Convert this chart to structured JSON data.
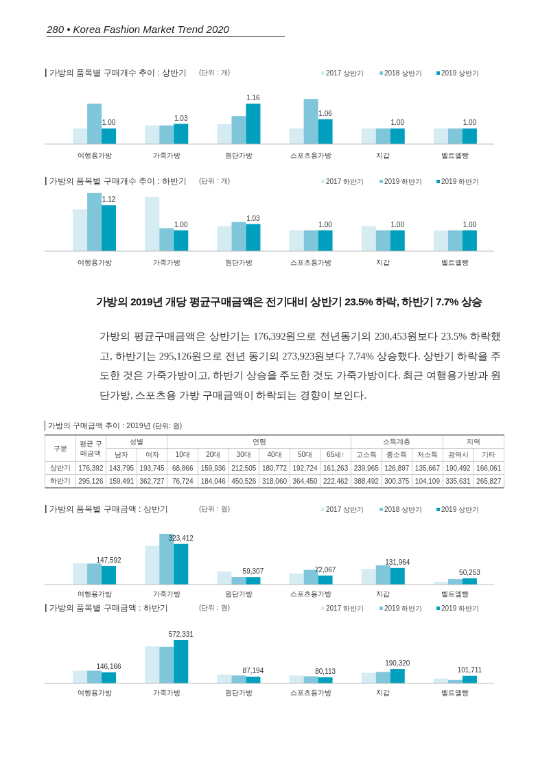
{
  "chart_data": [
    {
      "type": "other",
      "title": "280 • Korea Fashion Market Trend 2020"
    },
    {
      "type": "bar",
      "title": "가방의 품목별 구매개수 추이 : 상반기",
      "subtitle": "(단위 : 개)",
      "categories": [
        "여행용가방",
        "가죽가방",
        "원단가방",
        "스포츠용가방",
        "지갑",
        "벨트멜빵"
      ],
      "ylim": [
        0.9,
        1.2
      ],
      "tick_labels": "x",
      "legend": "top right",
      "series": [
        {
          "name": "2017 상반기",
          "color": "#d6ecf3",
          "values": [
            1.0,
            1.02,
            1.03,
            1.0,
            1.0,
            1.0
          ]
        },
        {
          "name": "2018 상반기",
          "color": "#7fc6da",
          "values": [
            1.16,
            1.02,
            1.08,
            1.19,
            1.0,
            1.0
          ]
        },
        {
          "name": "2019 상반기",
          "color": "#009fbd",
          "values": [
            1.0,
            1.03,
            1.16,
            1.06,
            1.0,
            1.0
          ],
          "value_labels": [
            "1.00",
            "1.03",
            "1.16",
            "1.06",
            "1.00",
            "1.00"
          ]
        }
      ]
    },
    {
      "type": "bar",
      "title": "가방의 품목별 구매개수 추이 : 하반기",
      "subtitle": "(단위 : 개)",
      "categories": [
        "여행용가방",
        "가죽가방",
        "원단가방",
        "스포츠용가방",
        "지갑",
        "벨트멜빵"
      ],
      "ylim": [
        0.9,
        1.18
      ],
      "tick_labels": "x",
      "legend": "top right",
      "series": [
        {
          "name": "2017 하반기",
          "color": "#d6ecf3",
          "values": [
            1.1,
            1.16,
            1.02,
            1.0,
            1.02,
            1.0
          ]
        },
        {
          "name": "2019 하반기",
          "color": "#7fc6da",
          "values": [
            1.18,
            1.01,
            1.04,
            1.0,
            1.0,
            1.0
          ]
        },
        {
          "name": "2019 하반기",
          "color": "#009fbd",
          "values": [
            1.12,
            1.0,
            1.03,
            1.0,
            1.0,
            1.0
          ],
          "value_labels": [
            "1.12",
            "1.00",
            "1.03",
            "1.00",
            "1.00",
            "1.00"
          ]
        }
      ]
    },
    {
      "type": "other",
      "title": "가방의 2019년 개당 평균구매금액은 전기대비 상반기 23.5% 하락, 하반기 7.7% 상승",
      "annotations": [
        "가방의 평균구매금액은 상반기는 176,392원으로 전년동기의 230,453원보다 23.5% 하락했고, 하반기는 295,126원으로 전년 동기의 273,923원보다 7.74% 상승했다. 상반기 하락을 주도한 것은 가죽가방이고, 하반기 상승을 주도한 것도 가죽가방이다. 최근 여행용가방과 원단가방, 스포츠용 가방 구매금액이 하락되는 경향이 보인다."
      ]
    },
    {
      "type": "heatmap",
      "title": "가방의 구매금액 추이 : 2019년",
      "subtitle": "(단위: 원)",
      "annotations": [
        "구분",
        "성별",
        "연령",
        "소득계층",
        "지역"
      ],
      "data_labels": true,
      "categories": [
        "평균 구매금액",
        "남자",
        "여자",
        "10대",
        "20대",
        "30대",
        "40대",
        "50대",
        "65세↑",
        "고소득",
        "중소득",
        "저소득",
        "광역시",
        "기타"
      ],
      "y_categories": [
        "상반기",
        "하반기"
      ],
      "cells": [
        [
          176392,
          143795,
          193745,
          68866,
          159936,
          212505,
          180772,
          192724,
          161263,
          239965,
          126897,
          135667,
          190492,
          166061
        ],
        [
          295126,
          159491,
          362727,
          76724,
          184046,
          450526,
          318060,
          364450,
          222462,
          388492,
          300375,
          104109,
          335631,
          265827
        ]
      ],
      "cell_labels": [
        [
          "176,392",
          "143,795",
          "193,745",
          "68,866",
          "159,936",
          "212,505",
          "180,772",
          "192,724",
          "161,263",
          "239,965",
          "126,897",
          "135,667",
          "190,492",
          "166,061"
        ],
        [
          "295,126",
          "159,491",
          "362,727",
          "76,724",
          "184,046",
          "450,526",
          "318,060",
          "364,450",
          "222,462",
          "388,492",
          "300,375",
          "104,109",
          "335,631",
          "265,827"
        ]
      ]
    },
    {
      "type": "bar",
      "title": "가방의 품목별 구매금액 : 상반기",
      "subtitle": "(단위 : 원)",
      "categories": [
        "여행용가방",
        "가죽가방",
        "원단가방",
        "스포츠용가방",
        "지갑",
        "벨트멜빵"
      ],
      "ylim": [
        0,
        404000
      ],
      "tick_labels": "x",
      "legend": "top right",
      "series": [
        {
          "name": "2017 상반기",
          "color": "#d6ecf3",
          "values": [
            170000,
            308000,
            105000,
            88000,
            124000,
            22000
          ]
        },
        {
          "name": "2018 상반기",
          "color": "#7fc6da",
          "values": [
            167000,
            404000,
            60000,
            117000,
            153000,
            43000
          ]
        },
        {
          "name": "2019 상반기",
          "color": "#009fbd",
          "values": [
            147592,
            323412,
            59307,
            72067,
            131964,
            50253
          ],
          "value_labels": [
            "147,592",
            "323,412",
            "59,307",
            "72,067",
            "131,964",
            "50,253"
          ]
        }
      ]
    },
    {
      "type": "bar",
      "title": "가방의 품목별 구매금액 : 하반기",
      "subtitle": "(단위 : 원)",
      "categories": [
        "여행용가방",
        "가죽가방",
        "원단가방",
        "스포츠용가방",
        "지갑",
        "벨트멜빵"
      ],
      "ylim": [
        0,
        572331
      ],
      "tick_labels": "x",
      "legend": "top right",
      "series": [
        {
          "name": "2017 하반기",
          "color": "#d6ecf3",
          "values": [
            168000,
            491000,
            117000,
            105000,
            140000,
            66000
          ]
        },
        {
          "name": "2019 하반기",
          "color": "#7fc6da",
          "values": [
            168000,
            484000,
            105000,
            94000,
            152000,
            47000
          ]
        },
        {
          "name": "2019 하반기",
          "color": "#009fbd",
          "values": [
            146166,
            572331,
            87194,
            80113,
            190320,
            101711
          ],
          "value_labels": [
            "146,166",
            "572,331",
            "87,194",
            "80,113",
            "190,320",
            "101,711"
          ]
        }
      ]
    }
  ]
}
